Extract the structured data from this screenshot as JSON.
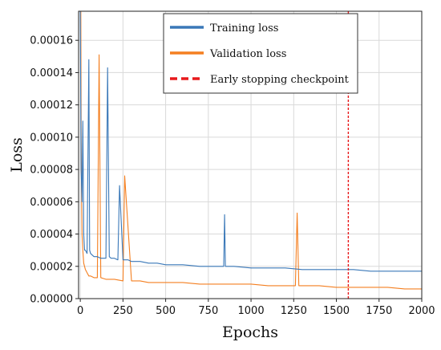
{
  "chart_data": {
    "type": "line",
    "title": "",
    "xlabel": "Epochs",
    "ylabel": "Loss",
    "xlim": [
      -10,
      2000
    ],
    "ylim": [
      0,
      0.000178
    ],
    "xticks": [
      0,
      250,
      500,
      750,
      1000,
      1250,
      1500,
      1750,
      2000
    ],
    "xtick_labels": [
      "0",
      "250",
      "500",
      "750",
      "1000",
      "1250",
      "1500",
      "1750",
      "2000"
    ],
    "yticks": [
      0,
      2e-05,
      4e-05,
      6e-05,
      8e-05,
      0.0001,
      0.00012,
      0.00014,
      0.00016
    ],
    "ytick_labels": [
      "0.00000",
      "0.00002",
      "0.00004",
      "0.00006",
      "0.00008",
      "0.00010",
      "0.00012",
      "0.00014",
      "0.00016"
    ],
    "grid": true,
    "legend_position": "top-center",
    "series": [
      {
        "name": "Training loss",
        "color": "#3a78b8",
        "style": "solid",
        "x": [
          0,
          5,
          10,
          15,
          20,
          25,
          30,
          40,
          50,
          55,
          60,
          70,
          80,
          100,
          120,
          150,
          160,
          170,
          180,
          200,
          220,
          230,
          250,
          260,
          280,
          300,
          350,
          400,
          450,
          500,
          600,
          700,
          800,
          840,
          845,
          850,
          900,
          1000,
          1100,
          1200,
          1300,
          1400,
          1500,
          1600,
          1700,
          1800,
          1900,
          2000
        ],
        "y": [
          0.000178,
          8e-05,
          6e-05,
          0.00011,
          4e-05,
          3e-05,
          3e-05,
          2.8e-05,
          0.000148,
          3e-05,
          2.8e-05,
          2.7e-05,
          2.6e-05,
          2.6e-05,
          2.5e-05,
          2.5e-05,
          0.000143,
          2.6e-05,
          2.5e-05,
          2.5e-05,
          2.4e-05,
          7e-05,
          2.4e-05,
          2.4e-05,
          2.4e-05,
          2.3e-05,
          2.3e-05,
          2.2e-05,
          2.2e-05,
          2.1e-05,
          2.1e-05,
          2e-05,
          2e-05,
          2e-05,
          5.2e-05,
          2e-05,
          2e-05,
          1.9e-05,
          1.9e-05,
          1.9e-05,
          1.8e-05,
          1.8e-05,
          1.8e-05,
          1.8e-05,
          1.7e-05,
          1.7e-05,
          1.7e-05,
          1.7e-05
        ]
      },
      {
        "name": "Validation loss",
        "color": "#f47f20",
        "style": "solid",
        "x": [
          0,
          3,
          5,
          8,
          10,
          15,
          20,
          30,
          40,
          50,
          60,
          80,
          100,
          110,
          120,
          150,
          200,
          250,
          260,
          300,
          350,
          400,
          500,
          600,
          700,
          800,
          900,
          1000,
          1100,
          1200,
          1260,
          1270,
          1280,
          1300,
          1400,
          1500,
          1600,
          1700,
          1800,
          1900,
          2000
        ],
        "y": [
          0.000178,
          0.000178,
          0.0001,
          6e-05,
          4e-05,
          3e-05,
          2.2e-05,
          1.8e-05,
          1.6e-05,
          1.4e-05,
          1.4e-05,
          1.3e-05,
          1.3e-05,
          0.000151,
          1.3e-05,
          1.2e-05,
          1.2e-05,
          1.1e-05,
          7.6e-05,
          1.1e-05,
          1.1e-05,
          1e-05,
          1e-05,
          1e-05,
          9e-06,
          9e-06,
          9e-06,
          9e-06,
          8e-06,
          8e-06,
          8e-06,
          5.3e-05,
          8e-06,
          8e-06,
          8e-06,
          7e-06,
          7e-06,
          7e-06,
          7e-06,
          6e-06,
          6e-06
        ]
      },
      {
        "name": "Early stopping checkpoint",
        "color": "#e8191b",
        "style": "dashed",
        "x": [
          1570,
          1570
        ],
        "y": [
          0,
          0.000178
        ]
      }
    ]
  }
}
